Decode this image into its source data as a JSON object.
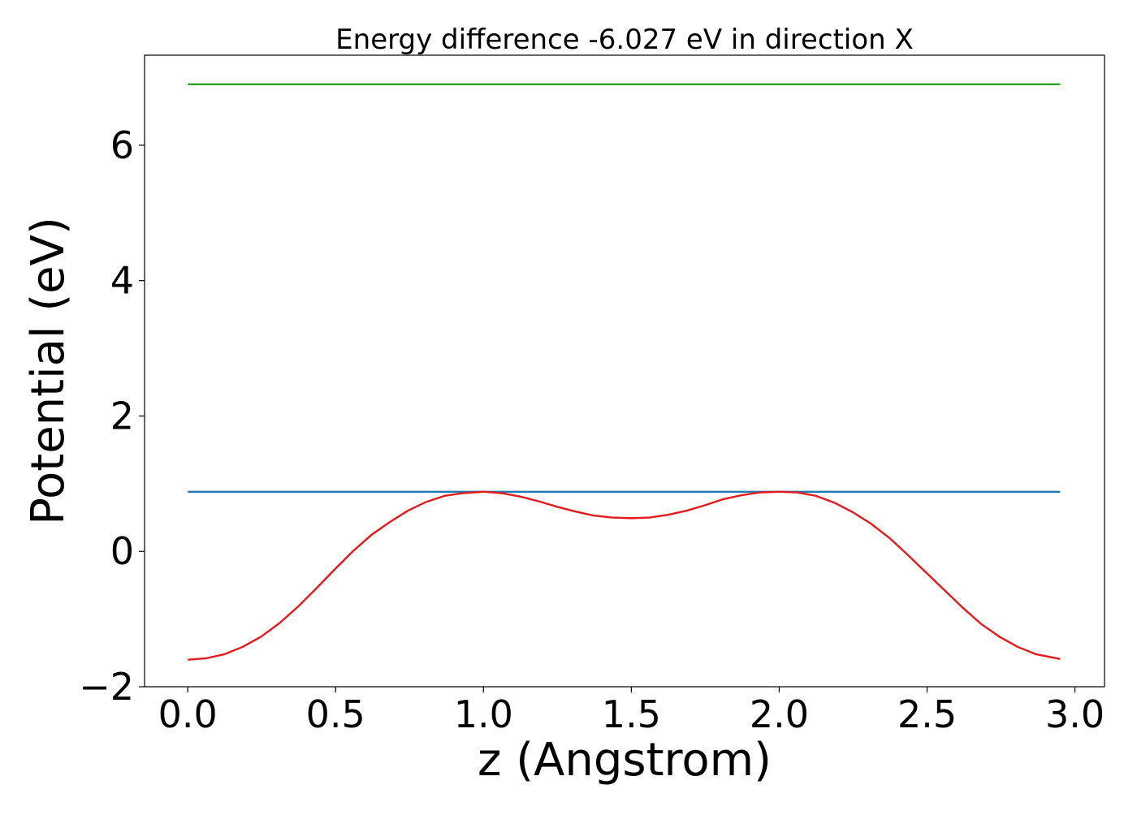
{
  "chart_data": {
    "type": "line",
    "title": "Energy difference -6.027 eV in direction X",
    "xlabel": "z (Angstrom)",
    "ylabel": "Potential (eV)",
    "xlim": [
      -0.146,
      3.1
    ],
    "ylim": [
      -2.0,
      7.33
    ],
    "xticks": [
      0.0,
      0.5,
      1.0,
      1.5,
      2.0,
      2.5,
      3.0
    ],
    "xtick_labels": [
      "0.0",
      "0.5",
      "1.0",
      "1.5",
      "2.0",
      "2.5",
      "3.0"
    ],
    "yticks": [
      -2,
      0,
      2,
      4,
      6
    ],
    "ytick_labels": [
      "−2",
      "0",
      "2",
      "4",
      "6"
    ],
    "grid": false,
    "legend": false,
    "series": [
      {
        "color": "#2ca02c",
        "x": [
          0.0,
          2.95
        ],
        "y": [
          6.9,
          6.9
        ]
      },
      {
        "color": "#1f77b4",
        "x": [
          0.0,
          2.95
        ],
        "y": [
          0.88,
          0.88
        ]
      },
      {
        "color": "#e41a1c",
        "x": [
          0.0,
          0.062,
          0.124,
          0.186,
          0.248,
          0.31,
          0.372,
          0.434,
          0.496,
          0.558,
          0.62,
          0.682,
          0.744,
          0.806,
          0.868,
          0.93,
          1.0,
          1.062,
          1.124,
          1.186,
          1.248,
          1.31,
          1.372,
          1.434,
          1.5,
          1.562,
          1.624,
          1.686,
          1.748,
          1.81,
          1.872,
          1.934,
          2.0,
          2.062,
          2.124,
          2.186,
          2.248,
          2.31,
          2.372,
          2.434,
          2.496,
          2.558,
          2.62,
          2.682,
          2.744,
          2.806,
          2.868,
          2.95
        ],
        "y": [
          -1.6,
          -1.58,
          -1.52,
          -1.41,
          -1.26,
          -1.06,
          -0.82,
          -0.55,
          -0.27,
          0.0,
          0.24,
          0.43,
          0.6,
          0.73,
          0.82,
          0.86,
          0.88,
          0.86,
          0.81,
          0.74,
          0.66,
          0.59,
          0.53,
          0.5,
          0.49,
          0.5,
          0.54,
          0.6,
          0.68,
          0.77,
          0.83,
          0.87,
          0.88,
          0.87,
          0.82,
          0.72,
          0.58,
          0.41,
          0.2,
          -0.05,
          -0.31,
          -0.57,
          -0.83,
          -1.07,
          -1.26,
          -1.41,
          -1.52,
          -1.59
        ]
      }
    ]
  }
}
